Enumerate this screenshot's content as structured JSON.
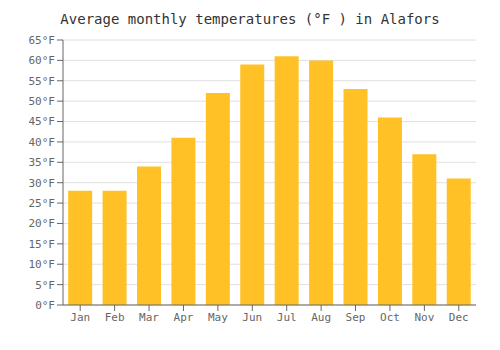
{
  "chart_data": {
    "type": "bar",
    "title": "Average monthly temperatures (°F ) in Alafors",
    "categories": [
      "Jan",
      "Feb",
      "Mar",
      "Apr",
      "May",
      "Jun",
      "Jul",
      "Aug",
      "Sep",
      "Oct",
      "Nov",
      "Dec"
    ],
    "values": [
      28,
      28,
      34,
      41,
      52,
      59,
      61,
      60,
      53,
      46,
      37,
      31
    ],
    "color": "#FFC125",
    "ylim": [
      0,
      65
    ],
    "yticks": [
      {
        "value": 0,
        "label": "0°F"
      },
      {
        "value": 5,
        "label": "5°F"
      },
      {
        "value": 10,
        "label": "10°F"
      },
      {
        "value": 15,
        "label": "15°F"
      },
      {
        "value": 20,
        "label": "20°F"
      },
      {
        "value": 25,
        "label": "25°F"
      },
      {
        "value": 30,
        "label": "30°F"
      },
      {
        "value": 35,
        "label": "35°F"
      },
      {
        "value": 40,
        "label": "40°F"
      },
      {
        "value": 45,
        "label": "45°F"
      },
      {
        "value": 50,
        "label": "50°F"
      },
      {
        "value": 55,
        "label": "55°F"
      },
      {
        "value": 60,
        "label": "60°F"
      },
      {
        "value": 65,
        "label": "65°F"
      }
    ],
    "grid": true
  }
}
